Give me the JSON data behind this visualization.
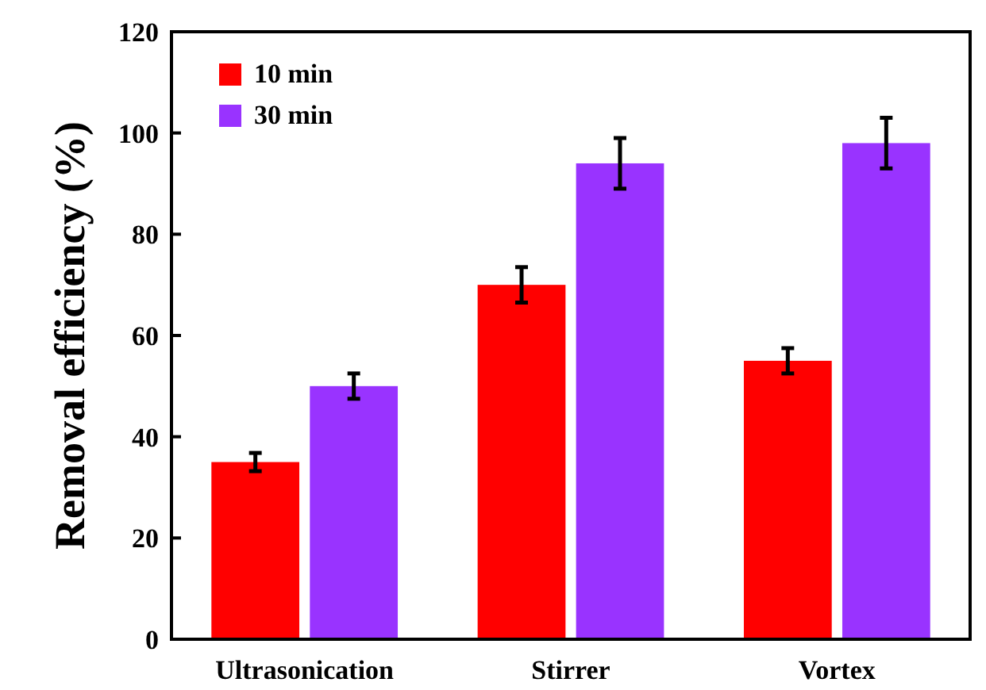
{
  "chart_data": {
    "type": "bar",
    "ylabel": "Removal efficiency (%)",
    "categories": [
      "Ultrasonication",
      "Stirrer",
      "Vortex"
    ],
    "series": [
      {
        "name": "10 min",
        "color": "#ff0000",
        "values": [
          35,
          70,
          55
        ],
        "errors": [
          1.8,
          3.5,
          2.5
        ]
      },
      {
        "name": "30 min",
        "color": "#9933ff",
        "values": [
          50,
          94,
          98
        ],
        "errors": [
          2.5,
          5,
          5
        ]
      }
    ],
    "ylim": [
      0,
      120
    ],
    "yticks": [
      0,
      20,
      40,
      60,
      80,
      100,
      120
    ],
    "grid": false,
    "legend": "top left"
  }
}
